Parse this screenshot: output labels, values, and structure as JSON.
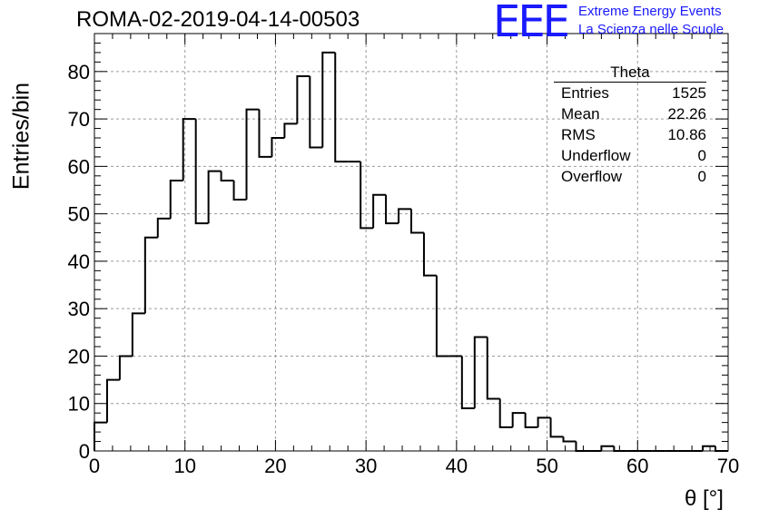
{
  "header": {
    "title": "ROMA-02-2019-04-14-00503",
    "logo_mark": "EEE",
    "logo_line1": "Extreme Energy Events",
    "logo_line2": "La Scienza nelle Scuole"
  },
  "stats_box": {
    "title": "Theta",
    "rows": [
      {
        "label": "Entries",
        "value": "1525"
      },
      {
        "label": "Mean",
        "value": "22.26"
      },
      {
        "label": "RMS",
        "value": "10.86"
      },
      {
        "label": "Underflow",
        "value": "0"
      },
      {
        "label": "Overflow",
        "value": "0"
      }
    ]
  },
  "chart_data": {
    "type": "bar",
    "histogram": true,
    "title": "ROMA-02-2019-04-14-00503",
    "xlabel": "θ [°]",
    "ylabel": "Entries/bin",
    "xlim": [
      0,
      70
    ],
    "ylim": [
      0,
      88
    ],
    "bin_width": 1.4,
    "x": [
      0,
      1.4,
      2.8,
      4.2,
      5.6,
      7.0,
      8.4,
      9.8,
      11.2,
      12.6,
      14.0,
      15.4,
      16.8,
      18.2,
      19.6,
      21.0,
      22.4,
      23.8,
      25.2,
      26.6,
      28.0,
      29.4,
      30.8,
      32.2,
      33.6,
      35.0,
      36.4,
      37.8,
      39.2,
      40.6,
      42.0,
      43.4,
      44.8,
      46.2,
      47.6,
      49.0,
      50.4,
      51.8,
      53.2,
      54.6,
      56.0,
      57.4,
      58.8,
      60.2,
      61.6,
      63.0,
      64.4,
      65.8,
      67.2,
      68.6
    ],
    "values": [
      6,
      15,
      20,
      29,
      45,
      49,
      57,
      70,
      48,
      59,
      57,
      53,
      72,
      62,
      66,
      69,
      79,
      64,
      84,
      61,
      61,
      47,
      54,
      48,
      51,
      46,
      37,
      20,
      20,
      9,
      24,
      11,
      5,
      8,
      5,
      7,
      3,
      2,
      0,
      0,
      1,
      0,
      0,
      0,
      0,
      0,
      0,
      0,
      1,
      0
    ],
    "x_ticks": [
      0,
      10,
      20,
      30,
      40,
      50,
      60,
      70
    ],
    "y_ticks": [
      0,
      10,
      20,
      30,
      40,
      50,
      60,
      70,
      80
    ],
    "grid": true,
    "line_color": "#000000",
    "grid_color": "#9a9a9a"
  }
}
